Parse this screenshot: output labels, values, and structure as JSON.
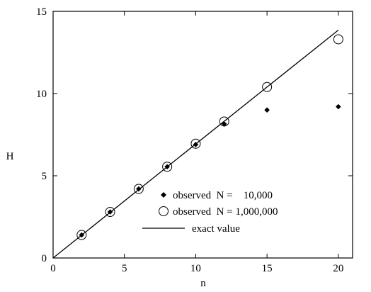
{
  "chart_data": {
    "type": "scatter",
    "xlabel": "n",
    "ylabel": "H",
    "xlim": [
      0,
      21
    ],
    "ylim": [
      0,
      15
    ],
    "xticks": [
      0,
      5,
      10,
      15,
      20
    ],
    "yticks": [
      0,
      5,
      10,
      15
    ],
    "grid": false,
    "legend_position": "bottom-right",
    "series": [
      {
        "name": "observed  N =    10,000",
        "marker": "diamond",
        "x": [
          2,
          4,
          6,
          8,
          10,
          12,
          15,
          20
        ],
        "y": [
          1.4,
          2.8,
          4.2,
          5.55,
          6.9,
          8.15,
          9.0,
          9.2
        ]
      },
      {
        "name": "observed  N = 1,000,000",
        "marker": "open-circle",
        "x": [
          2,
          4,
          6,
          8,
          10,
          12,
          15,
          20
        ],
        "y": [
          1.4,
          2.8,
          4.2,
          5.55,
          6.95,
          8.3,
          10.4,
          13.3
        ]
      },
      {
        "name": "exact value",
        "marker": "line",
        "x": [
          0,
          20
        ],
        "y": [
          0,
          13.86
        ]
      }
    ]
  }
}
